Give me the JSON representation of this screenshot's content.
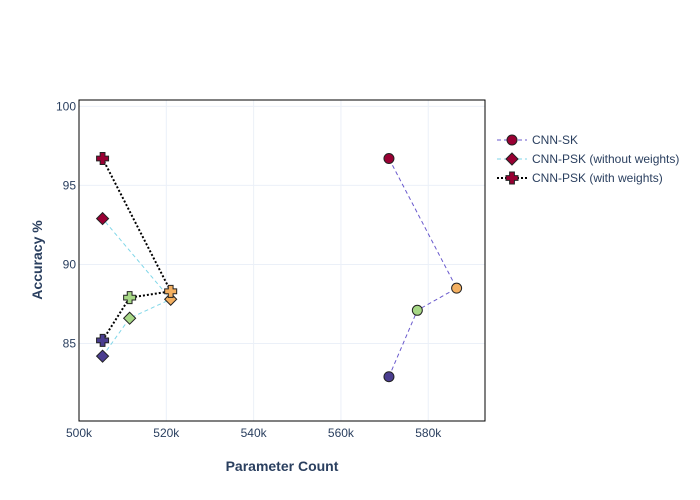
{
  "chart_data": {
    "type": "scatter",
    "xlabel": "Parameter Count",
    "ylabel": "Accuracy %",
    "xlim": [
      500000,
      593000
    ],
    "ylim": [
      80.1,
      100.4
    ],
    "xticks": [
      500000,
      520000,
      540000,
      560000,
      580000
    ],
    "xtick_labels": [
      "500k",
      "520k",
      "540k",
      "560k",
      "580k"
    ],
    "yticks": [
      85,
      90,
      95,
      100
    ],
    "ytick_labels": [
      "85",
      "90",
      "95",
      "100"
    ],
    "grid": true,
    "legend_position": "right",
    "point_colors": [
      "#4a3d8f",
      "#a6d785",
      "#f4b061",
      "#990033"
    ],
    "series": [
      {
        "name": "CNN-SK",
        "marker": "circle",
        "line_color": "#6a5acd",
        "line_dash": "4,3",
        "line_width": 1,
        "x": [
          571000,
          577500,
          586500,
          571000
        ],
        "y": [
          82.9,
          87.1,
          88.5,
          96.7
        ]
      },
      {
        "name": "CNN-PSK (without weights)",
        "marker": "diamond",
        "line_color": "#7fd6e8",
        "line_dash": "4,3",
        "line_width": 1,
        "x": [
          505400,
          511600,
          521000,
          505400
        ],
        "y": [
          84.2,
          86.6,
          87.8,
          92.9
        ]
      },
      {
        "name": "CNN-PSK (with weights)",
        "marker": "cross",
        "line_color": "#000000",
        "line_dash": "2,2",
        "line_width": 2,
        "x": [
          505400,
          511600,
          521000,
          505400
        ],
        "y": [
          85.2,
          87.9,
          88.3,
          96.7
        ]
      }
    ]
  }
}
